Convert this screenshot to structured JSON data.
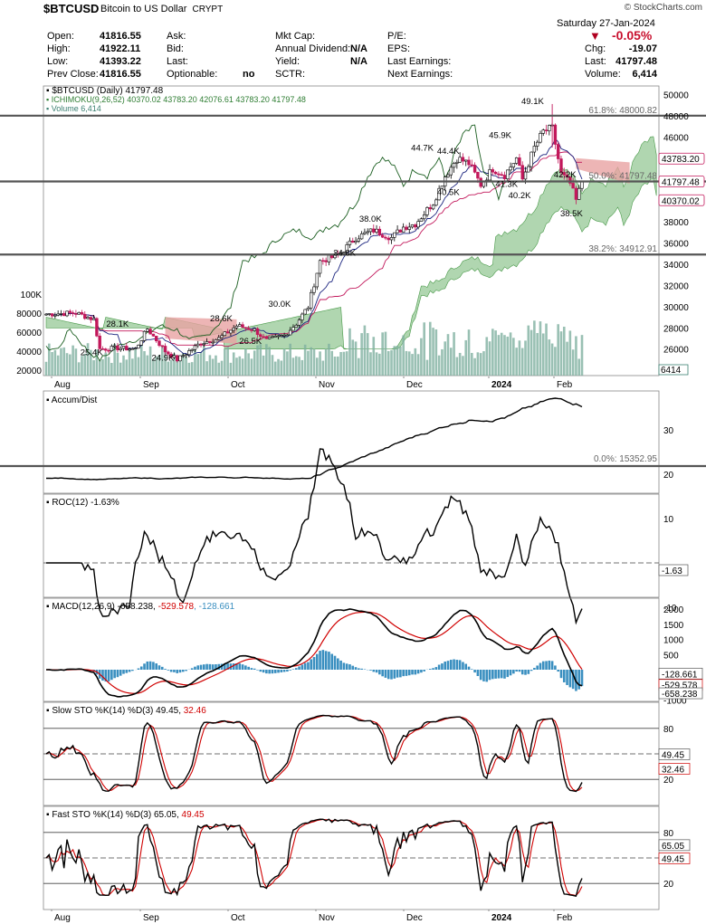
{
  "header": {
    "symbol": "$BTCUSD",
    "description": "Bitcoin to US Dollar",
    "exchange": "CRYPT",
    "watermark": "© StockCharts.com",
    "date": "Saturday  27-Jan-2024",
    "change_pct": "-0.05%",
    "rows": [
      {
        "l1": "Open:",
        "v1": "41816.55",
        "l2": "Ask:",
        "v2": "",
        "l3": "Mkt Cap:",
        "v3": "",
        "l4": "P/E:",
        "v4": ""
      },
      {
        "l1": "High:",
        "v1": "41922.11",
        "l2": "Bid:",
        "v2": "",
        "l3": "Annual Dividend:",
        "v3": "N/A",
        "l4": "EPS:",
        "v4": ""
      },
      {
        "l1": "Low:",
        "v1": "41393.22",
        "l2": "Last:",
        "v2": "",
        "l3": "Yield:",
        "v3": "N/A",
        "l4": "Last Earnings:",
        "v4": ""
      },
      {
        "l1": "Prev Close:",
        "v1": "41816.55",
        "l2": "Optionable:",
        "v2": "no",
        "l3": "SCTR:",
        "v3": "",
        "l4": "Next Earnings:",
        "v4": ""
      }
    ],
    "right": [
      {
        "l": "Chg:",
        "v": "-19.07"
      },
      {
        "l": "Last:",
        "v": "41797.48"
      },
      {
        "l": "Volume:",
        "v": "6,414"
      }
    ]
  },
  "chart_data": [
    {
      "type": "candlestick",
      "panel": "price",
      "legend": [
        "$BTCUSD (Daily) 41797.48",
        "ICHIMOKU(9,26,52) 40370.02 43783.20 42076.61 43783.20 41797.48",
        "Volume 6,414"
      ],
      "y_ticks": [
        26000,
        28000,
        30000,
        32000,
        34000,
        36000,
        38000,
        40000,
        42000,
        44000,
        46000,
        48000,
        50000
      ],
      "volume_ticks": [
        "100K",
        "80000",
        "60000",
        "40000",
        "20000"
      ],
      "x_ticks": [
        "Aug",
        "Sep",
        "Oct",
        "Nov",
        "Dec",
        "2024",
        "Jan",
        "Feb"
      ],
      "price_labels": [
        {
          "text": "49.1K",
          "x": "2024-01-11",
          "y": 49100
        },
        {
          "text": "45.9K",
          "x": "2024-01-02",
          "y": 45900
        },
        {
          "text": "44.7K",
          "x": "2023-12-08",
          "y": 44700
        },
        {
          "text": "44.4K",
          "x": "2023-12-18",
          "y": 44400
        },
        {
          "text": "42.2K",
          "x": "2024-01-22",
          "y": 42200
        },
        {
          "text": "41.3K",
          "x": "2024-01-03",
          "y": 41300
        },
        {
          "text": "40.5K",
          "x": "2023-12-18",
          "y": 40500
        },
        {
          "text": "40.2K",
          "x": "2024-01-06",
          "y": 40200
        },
        {
          "text": "38.5K",
          "x": "2024-01-23",
          "y": 38500
        },
        {
          "text": "38.0K",
          "x": "2023-11-24",
          "y": 38000
        },
        {
          "text": "34.8K",
          "x": "2023-11-14",
          "y": 34800
        },
        {
          "text": "30.0K",
          "x": "2023-10-24",
          "y": 30000
        },
        {
          "text": "28.6K",
          "x": "2023-10-02",
          "y": 28600
        },
        {
          "text": "28.1K",
          "x": "2023-08-29",
          "y": 28100
        },
        {
          "text": "26.5K",
          "x": "2023-10-12",
          "y": 26500
        },
        {
          "text": "25.4K",
          "x": "2023-08-18",
          "y": 25400
        },
        {
          "text": "24.9K",
          "x": "2023-09-11",
          "y": 24900
        }
      ],
      "fib_labels": [
        "61.8%: 48000.82",
        "50.0%: 41797.48",
        "38.2%: 34912.91"
      ],
      "price_tags": [
        "43783.20",
        "41797.48",
        "40370.02"
      ],
      "volume_tag": "6414"
    },
    {
      "type": "line",
      "panel": "Accum/Dist",
      "legend": "Accum/Dist",
      "label": "0.0%: 15352.95"
    },
    {
      "type": "line",
      "panel": "ROC",
      "legend": "ROC(12) -1.63%",
      "y_ticks": [
        30,
        20,
        10,
        -10
      ],
      "tag": "-1.63"
    },
    {
      "type": "line",
      "panel": "MACD",
      "legend": [
        "MACD(12,26,9) -658.238, ",
        "-529.578",
        ", -128.661"
      ],
      "y_ticks": [
        2000,
        1500,
        1000,
        500,
        -500,
        -1000
      ],
      "tags": [
        "-128.661",
        "-529.578",
        "-658.238"
      ]
    },
    {
      "type": "line",
      "panel": "Slow STO",
      "legend": [
        "Slow STO %K(14) %D(3) 49.45, ",
        "32.46"
      ],
      "y_ticks": [
        80,
        20
      ],
      "tags": [
        "49.45",
        "32.46"
      ]
    },
    {
      "type": "line",
      "panel": "Fast STO",
      "legend": [
        "Fast STO %K(14) %D(3) 65.05, ",
        "49.45"
      ],
      "y_ticks": [
        80,
        20
      ],
      "tags": [
        "65.05",
        "49.45"
      ]
    }
  ],
  "colors": {
    "up": "#2e7d32",
    "down": "#c2185b",
    "cloud_green": "#8fc58f",
    "cloud_red": "#e8a3a3",
    "volume": "#7fb0a0",
    "macd_hist": "#3a8fc0",
    "signal": "#d00000"
  }
}
